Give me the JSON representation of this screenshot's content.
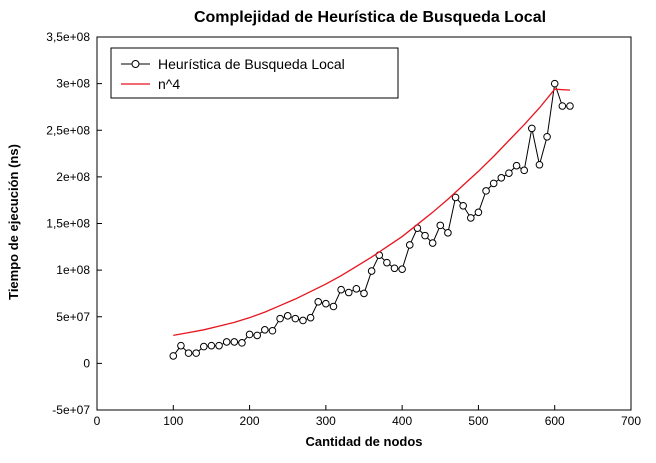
{
  "chart_data": {
    "type": "line",
    "title": "Complejidad de Heurística de Busqueda Local",
    "xlabel": "Cantidad de nodos",
    "ylabel": "Tiempo de ejecución (ns)",
    "xlim": [
      0,
      700
    ],
    "ylim": [
      -50000000,
      350000000
    ],
    "x_ticks": [
      0,
      100,
      200,
      300,
      400,
      500,
      600,
      700
    ],
    "x_tick_labels": [
      "0",
      "100",
      "200",
      "300",
      "400",
      "500",
      "600",
      "700"
    ],
    "y_ticks": [
      -50000000,
      0,
      50000000,
      100000000,
      150000000,
      200000000,
      250000000,
      300000000,
      350000000
    ],
    "y_tick_labels": [
      "-5e+07",
      "0",
      "5e+07",
      "1e+08",
      "1,5e+08",
      "2e+08",
      "2,5e+08",
      "3e+08",
      "3,5e+08"
    ],
    "grid": false,
    "legend_position": "top-left",
    "series": [
      {
        "name": "Heurística de Busqueda Local",
        "color": "#000000",
        "marker": "circle",
        "x": [
          100,
          110,
          120,
          130,
          140,
          150,
          160,
          170,
          180,
          190,
          200,
          210,
          220,
          230,
          240,
          250,
          260,
          270,
          280,
          290,
          300,
          310,
          320,
          330,
          340,
          350,
          360,
          370,
          380,
          390,
          400,
          410,
          420,
          430,
          440,
          450,
          460,
          470,
          480,
          490,
          500,
          510,
          520,
          530,
          540,
          550,
          560,
          570,
          580,
          590,
          600,
          610,
          620
        ],
        "y": [
          8000000,
          19000000,
          11000000,
          11000000,
          18000000,
          19000000,
          19000000,
          23000000,
          23000000,
          22000000,
          31000000,
          30000000,
          36000000,
          35000000,
          48000000,
          51000000,
          48000000,
          46000000,
          49000000,
          66000000,
          64000000,
          61000000,
          79000000,
          76000000,
          80000000,
          75000000,
          99000000,
          116000000,
          108000000,
          102000000,
          101000000,
          127000000,
          145000000,
          137000000,
          129000000,
          148000000,
          140000000,
          178000000,
          169000000,
          156000000,
          162000000,
          185000000,
          193000000,
          199000000,
          204000000,
          212000000,
          207000000,
          252000000,
          213000000,
          243000000,
          300000000,
          276000000,
          276000000
        ]
      },
      {
        "name": "n^4",
        "color": "#e8141e",
        "marker": "none",
        "x": [
          100,
          120,
          140,
          160,
          180,
          200,
          220,
          240,
          260,
          280,
          300,
          320,
          340,
          360,
          380,
          400,
          420,
          440,
          460,
          480,
          500,
          520,
          540,
          560,
          580,
          600,
          620
        ],
        "y": [
          30000000,
          33000000,
          36000000,
          40000000,
          44000000,
          49000000,
          55000000,
          62000000,
          69000000,
          77000000,
          85000000,
          94000000,
          104000000,
          114000000,
          125000000,
          136000000,
          149000000,
          162000000,
          176000000,
          191000000,
          206000000,
          222000000,
          239000000,
          256000000,
          274000000,
          294000000,
          293000000
        ]
      }
    ]
  }
}
